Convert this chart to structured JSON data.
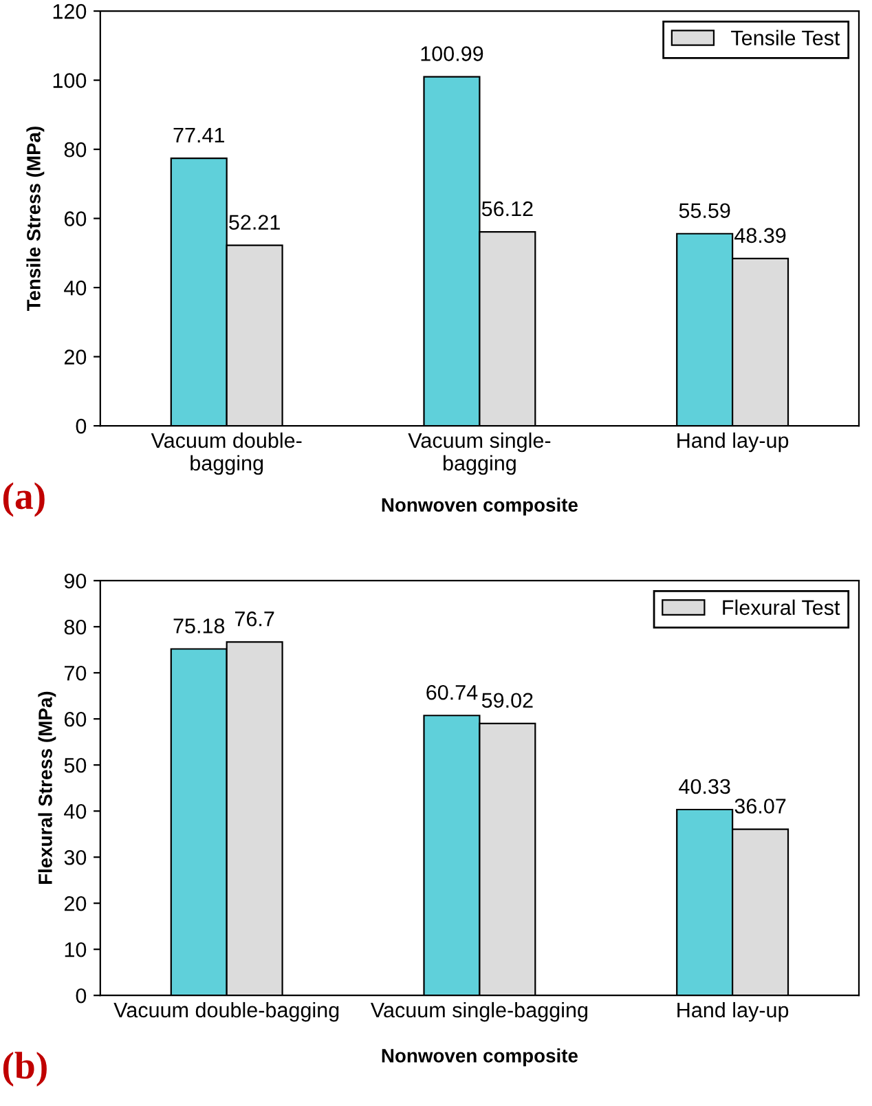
{
  "chart_data": [
    {
      "type": "bar",
      "categories": [
        "Vacuum double-\nbagging",
        "Vacuum single-\nbagging",
        "Hand lay-up"
      ],
      "xlabel": "Nonwoven composite",
      "ylabel": "Tensile Stress (MPa)",
      "ylim": [
        0,
        120
      ],
      "yticks": [
        0,
        20,
        40,
        60,
        80,
        100,
        120
      ],
      "data_labels": true,
      "legend": "top right",
      "grid": false,
      "annotations": [
        "(a)"
      ],
      "series": [
        {
          "color": "#5fd0da",
          "values": [
            77.41,
            100.99,
            55.59
          ]
        },
        {
          "name": "Tensile Test",
          "color": "#dcdcdc",
          "values": [
            52.21,
            56.12,
            48.39
          ]
        }
      ]
    },
    {
      "type": "bar",
      "categories": [
        "Vacuum double-bagging",
        "Vacuum single-bagging",
        "Hand lay-up"
      ],
      "xlabel": "Nonwoven composite",
      "ylabel": "Flexural Stress (MPa)",
      "ylim": [
        0,
        90
      ],
      "yticks": [
        0,
        10,
        20,
        30,
        40,
        50,
        60,
        70,
        80,
        90
      ],
      "data_labels": true,
      "legend": "top right",
      "grid": false,
      "annotations": [
        "(b)"
      ],
      "series": [
        {
          "color": "#5fd0da",
          "values": [
            75.18,
            60.74,
            40.33
          ]
        },
        {
          "name": "Flexural Test",
          "color": "#dcdcdc",
          "values": [
            76.7,
            59.02,
            36.07
          ]
        }
      ]
    }
  ]
}
